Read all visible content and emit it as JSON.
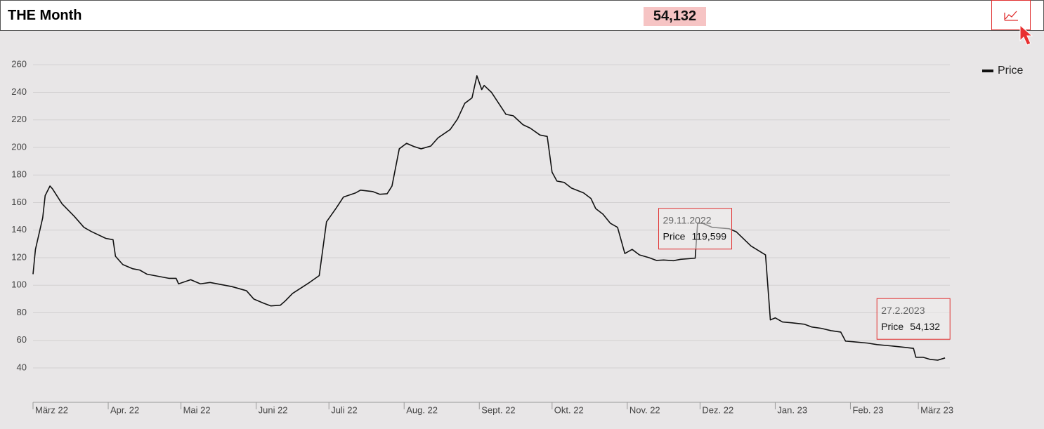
{
  "header": {
    "title": "THE Month",
    "value": "54,132"
  },
  "chart_data": {
    "type": "line",
    "x": [
      "2022-03-01",
      "2022-03-02",
      "2022-03-05",
      "2022-03-06",
      "2022-03-08",
      "2022-03-09",
      "2022-03-13",
      "2022-03-18",
      "2022-03-22",
      "2022-03-25",
      "2022-03-31",
      "2022-04-03",
      "2022-04-04",
      "2022-04-07",
      "2022-04-11",
      "2022-04-14",
      "2022-04-17",
      "2022-04-26",
      "2022-04-29",
      "2022-04-30",
      "2022-05-05",
      "2022-05-09",
      "2022-05-13",
      "2022-05-22",
      "2022-05-28",
      "2022-05-31",
      "2022-06-04",
      "2022-06-07",
      "2022-06-11",
      "2022-06-13",
      "2022-06-16",
      "2022-06-23",
      "2022-06-27",
      "2022-06-30",
      "2022-07-04",
      "2022-07-07",
      "2022-07-12",
      "2022-07-14",
      "2022-07-19",
      "2022-07-22",
      "2022-07-25",
      "2022-07-27",
      "2022-07-30",
      "2022-08-02",
      "2022-08-05",
      "2022-08-08",
      "2022-08-12",
      "2022-08-15",
      "2022-08-20",
      "2022-08-23",
      "2022-08-26",
      "2022-08-29",
      "2022-08-31",
      "2022-09-02",
      "2022-09-03",
      "2022-09-06",
      "2022-09-09",
      "2022-09-12",
      "2022-09-15",
      "2022-09-19",
      "2022-09-22",
      "2022-09-26",
      "2022-09-29",
      "2022-10-01",
      "2022-10-03",
      "2022-10-06",
      "2022-10-09",
      "2022-10-14",
      "2022-10-17",
      "2022-10-19",
      "2022-10-22",
      "2022-10-25",
      "2022-10-28",
      "2022-10-31",
      "2022-11-03",
      "2022-11-06",
      "2022-11-10",
      "2022-11-13",
      "2022-11-16",
      "2022-11-20",
      "2022-11-23",
      "2022-11-29",
      "2022-11-30",
      "2022-12-02",
      "2022-12-06",
      "2022-12-13",
      "2022-12-16",
      "2022-12-22",
      "2022-12-28",
      "2022-12-30",
      "2023-01-01",
      "2023-01-04",
      "2023-01-08",
      "2023-01-13",
      "2023-01-16",
      "2023-01-20",
      "2023-01-24",
      "2023-01-28",
      "2023-01-30",
      "2023-02-02",
      "2023-02-08",
      "2023-02-12",
      "2023-02-18",
      "2023-02-24",
      "2023-02-27",
      "2023-02-28",
      "2023-03-03",
      "2023-03-06",
      "2023-03-09",
      "2023-03-12"
    ],
    "series": [
      {
        "name": "Price",
        "color": "#111111",
        "values": [
          108,
          126,
          149,
          165,
          172,
          170,
          159,
          150,
          142,
          139,
          134,
          133,
          121,
          115,
          112,
          111,
          108,
          105,
          105,
          101,
          104,
          101,
          102,
          99,
          96,
          90,
          87,
          85,
          85.5,
          88.6,
          94,
          102,
          107,
          146,
          156,
          164,
          167,
          169,
          168,
          166,
          166.4,
          172,
          199,
          203,
          200.7,
          199,
          201,
          207,
          213,
          220.6,
          232,
          236,
          252,
          242,
          245,
          240,
          232,
          224,
          223,
          216.5,
          214,
          209,
          208,
          182,
          175.6,
          174.6,
          170.5,
          167,
          163,
          155.6,
          151.5,
          145,
          142,
          123,
          126,
          122,
          120,
          118,
          118.3,
          117.8,
          118.8,
          119.599,
          145,
          145,
          142,
          141,
          138.7,
          128.5,
          122,
          74.8,
          76.3,
          73.3,
          72.7,
          71.7,
          69.7,
          68.7,
          67,
          66,
          59.4,
          59,
          58,
          56.9,
          55.9,
          54.8,
          54.132,
          47.7,
          47.7,
          46.1,
          45.6,
          47.2
        ]
      }
    ],
    "xlim": [
      "2022-03-01",
      "2023-03-14"
    ],
    "xticks": [
      {
        "value": "2022-03-01",
        "label": "März 22"
      },
      {
        "value": "2022-04-01",
        "label": "Apr. 22"
      },
      {
        "value": "2022-05-01",
        "label": "Mai 22"
      },
      {
        "value": "2022-06-01",
        "label": "Juni 22"
      },
      {
        "value": "2022-07-01",
        "label": "Juli 22"
      },
      {
        "value": "2022-08-01",
        "label": "Aug. 22"
      },
      {
        "value": "2022-09-01",
        "label": "Sept. 22"
      },
      {
        "value": "2022-10-01",
        "label": "Okt. 22"
      },
      {
        "value": "2022-11-01",
        "label": "Nov. 22"
      },
      {
        "value": "2022-12-01",
        "label": "Dez. 22"
      },
      {
        "value": "2023-01-01",
        "label": "Jan. 23"
      },
      {
        "value": "2023-02-01",
        "label": "Feb. 23"
      },
      {
        "value": "2023-03-01",
        "label": "März 23"
      }
    ],
    "ylim": [
      15,
      280
    ],
    "yticks": [
      40,
      60,
      80,
      100,
      120,
      140,
      160,
      180,
      200,
      220,
      240,
      260
    ],
    "grid": true,
    "legend": "top-right",
    "tooltips": [
      {
        "date": "29.11.2022",
        "value": 119.599,
        "label": "119,599"
      },
      {
        "date": "27.2.2023",
        "value": 54.132,
        "label": "54,132"
      }
    ]
  }
}
